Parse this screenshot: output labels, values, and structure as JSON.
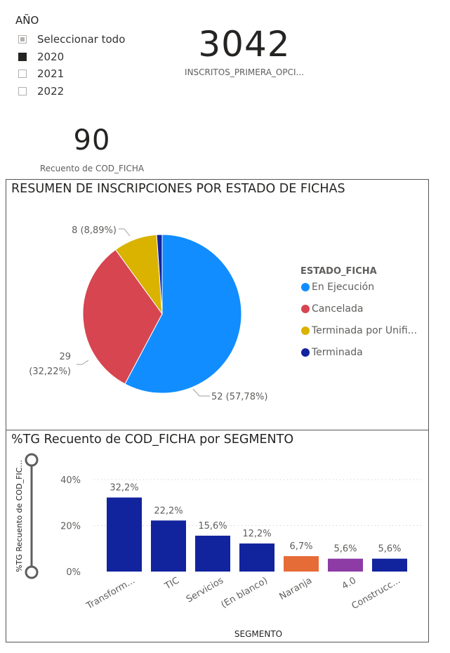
{
  "slicer": {
    "title": "AÑO",
    "items": [
      {
        "label": "Seleccionar todo",
        "state": "partial"
      },
      {
        "label": "2020",
        "state": "checked"
      },
      {
        "label": "2021",
        "state": "unchecked"
      },
      {
        "label": "2022",
        "state": "unchecked"
      }
    ]
  },
  "card_inscritos": {
    "value": "3042",
    "label": "INSCRITOS_PRIMERA_OPCI..."
  },
  "card_fichas": {
    "value": "90",
    "label": "Recuento de COD_FICHA"
  },
  "colors": {
    "en_ejecucion": "#118dff",
    "cancelada": "#d64550",
    "terminada_unif": "#d9b300",
    "terminada": "#12239e",
    "bar_navy": "#12239e",
    "bar_orange": "#e66c37",
    "bar_purple": "#8d3ba5"
  },
  "pie_visual": {
    "title": "RESUMEN DE INSCRIPCIONES POR ESTADO DE FICHAS",
    "legend_title": "ESTADO_FICHA",
    "chart_data": {
      "type": "pie",
      "slices": [
        {
          "label": "En Ejecución",
          "value": 52,
          "pct": "57,78%",
          "color": "#118dff",
          "label_text": "52 (57,78%)"
        },
        {
          "label": "Cancelada",
          "value": 29,
          "pct": "32,22%",
          "color": "#d64550",
          "label_line1": "29",
          "label_line2": "(32,22%)"
        },
        {
          "label": "Terminada por Unifi...",
          "value": 8,
          "pct": "8,89%",
          "color": "#d9b300",
          "label_text": "8 (8,89%)"
        },
        {
          "label": "Terminada",
          "value": 1,
          "pct": "1,11%",
          "color": "#12239e"
        }
      ],
      "legend_placement": "right"
    }
  },
  "bar_visual": {
    "title": "%TG Recuento de COD_FICHA por SEGMENTO",
    "chart_data": {
      "type": "bar",
      "categories": [
        "Transform...",
        "TIC",
        "Servicios",
        "(En blanco)",
        "Naranja",
        "4.0",
        "Construcc..."
      ],
      "values": [
        32.2,
        22.2,
        15.6,
        12.2,
        6.7,
        5.6,
        5.6
      ],
      "data_labels": [
        "32,2%",
        "22,2%",
        "15,6%",
        "12,2%",
        "6,7%",
        "5,6%",
        "5,6%"
      ],
      "colors": [
        "#12239e",
        "#12239e",
        "#12239e",
        "#12239e",
        "#e66c37",
        "#8d3ba5",
        "#12239e"
      ],
      "ylim": [
        0,
        40
      ],
      "yticks": [
        0,
        20,
        40
      ],
      "ytick_labels": [
        "0%",
        "20%",
        "40%"
      ],
      "xlabel": "SEGMENTO",
      "ylabel": "%TG Recuento de COD_FIC...",
      "grid": true
    }
  }
}
